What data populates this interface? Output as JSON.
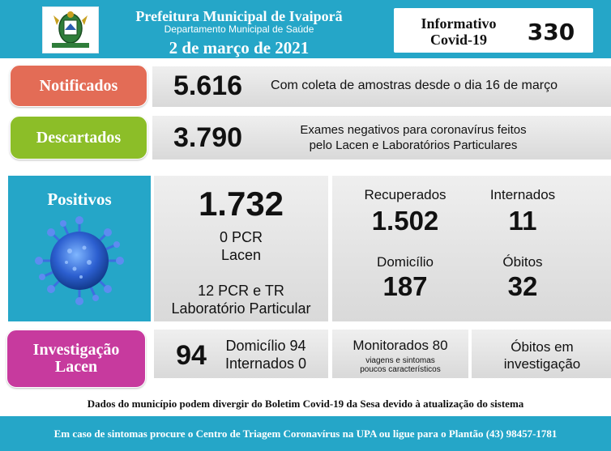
{
  "header": {
    "org_name": "Prefeitura Municipal de Ivaiporã",
    "department": "Departamento Municipal de Saúde",
    "date": "2 de março de 2021",
    "badge_line1": "Informativo",
    "badge_line2": "Covid-19",
    "badge_number": "330"
  },
  "notificados": {
    "label": "Notificados",
    "value": "5.616",
    "description": "Com coleta de amostras desde o dia 16 de março"
  },
  "descartados": {
    "label": "Descartados",
    "value": "3.790",
    "description_line1": "Exames negativos para coronavírus feitos",
    "description_line2": "pelo Lacen e Laboratórios Particulares"
  },
  "positivos": {
    "label": "Positivos",
    "total": "1.732",
    "pcr_lacen_line1": "0 PCR",
    "pcr_lacen_line2": "Lacen",
    "lab_line1": "12 PCR e TR",
    "lab_line2": "Laboratório Particular",
    "recuperados_label": "Recuperados",
    "recuperados_value": "1.502",
    "internados_label": "Internados",
    "internados_value": "11",
    "domicilio_label": "Domicílio",
    "domicilio_value": "187",
    "obitos_label": "Óbitos",
    "obitos_value": "32"
  },
  "investigacao": {
    "label_line1": "Investigação",
    "label_line2": "Lacen",
    "value": "94",
    "domicilio": "Domicílio 94",
    "internados": "Internados 0",
    "monitorados": "Monitorados 80",
    "monitorados_sub1": "viagens e sintomas",
    "monitorados_sub2": "poucos característicos",
    "obitos_line1": "Óbitos em",
    "obitos_line2": "investigação"
  },
  "disclaimer": "Dados do município podem divergir do Boletim Covid-19 da Sesa devido à atualização do sistema",
  "footer": "Em caso de sintomas procure o Centro de Triagem Coronavírus na UPA ou ligue para o Plantão (43) 98457-1781",
  "icons": {
    "logo": "municipal-coat-of-arms-icon",
    "virus": "coronavirus-icon"
  },
  "colors": {
    "header_blue": "#25a6c8",
    "notificados": "#e36c56",
    "descartados": "#8cbe28",
    "investigacao": "#c73a9e"
  }
}
